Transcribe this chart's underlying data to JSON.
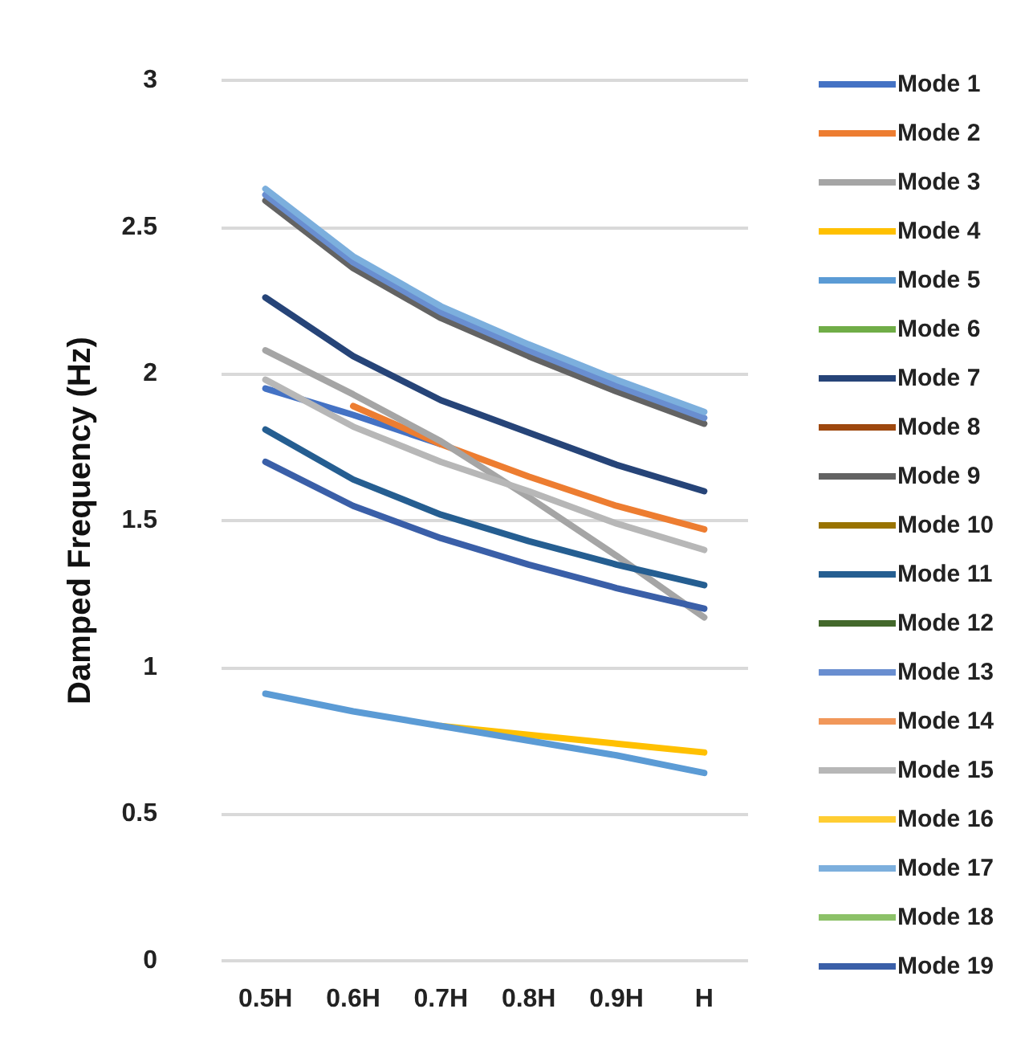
{
  "chart_data": {
    "type": "line",
    "ylabel": "Damped Frequency (Hz)",
    "categories": [
      "0.5H",
      "0.6H",
      "0.7H",
      "0.8H",
      "0.9H",
      "H"
    ],
    "ylim": [
      0,
      3
    ],
    "yticks": [
      0,
      0.5,
      1,
      1.5,
      2,
      2.5,
      3
    ],
    "grid": "y",
    "legend": "right",
    "marker": "none",
    "line_style": "solid",
    "series": [
      {
        "name": "Mode 1",
        "color": "#4472c4",
        "values": [
          1.95,
          1.86,
          1.76,
          null,
          null,
          null
        ]
      },
      {
        "name": "Mode 2",
        "color": "#ed7d31",
        "values": [
          null,
          1.89,
          1.76,
          1.65,
          1.55,
          1.47
        ]
      },
      {
        "name": "Mode 3",
        "color": "#a5a5a5",
        "values": [
          2.08,
          1.93,
          1.77,
          1.58,
          1.38,
          1.17
        ]
      },
      {
        "name": "Mode 4",
        "color": "#ffc000",
        "values": [
          null,
          null,
          0.8,
          0.77,
          0.74,
          0.71
        ]
      },
      {
        "name": "Mode 5",
        "color": "#5b9bd5",
        "values": [
          0.91,
          0.85,
          0.8,
          0.75,
          0.7,
          0.64
        ]
      },
      {
        "name": "Mode 6",
        "color": "#70ad47",
        "values": [
          null,
          null,
          null,
          null,
          null,
          null
        ]
      },
      {
        "name": "Mode 7",
        "color": "#264478",
        "values": [
          2.26,
          2.06,
          1.91,
          1.8,
          1.69,
          1.6
        ]
      },
      {
        "name": "Mode 8",
        "color": "#9e480e",
        "values": [
          null,
          null,
          null,
          null,
          null,
          null
        ]
      },
      {
        "name": "Mode 9",
        "color": "#636363",
        "values": [
          2.59,
          2.36,
          2.19,
          2.06,
          1.94,
          1.83
        ]
      },
      {
        "name": "Mode 10",
        "color": "#997300",
        "values": [
          null,
          null,
          null,
          null,
          null,
          null
        ]
      },
      {
        "name": "Mode 11",
        "color": "#255e91",
        "values": [
          1.81,
          1.64,
          1.52,
          1.43,
          1.35,
          1.28
        ]
      },
      {
        "name": "Mode 12",
        "color": "#43682b",
        "values": [
          null,
          null,
          null,
          null,
          null,
          null
        ]
      },
      {
        "name": "Mode 13",
        "color": "#698ed0",
        "values": [
          2.61,
          2.38,
          2.21,
          2.08,
          1.96,
          1.85
        ]
      },
      {
        "name": "Mode 14",
        "color": "#f1975a",
        "values": [
          null,
          null,
          null,
          null,
          null,
          null
        ]
      },
      {
        "name": "Mode 15",
        "color": "#b7b7b7",
        "values": [
          1.98,
          1.82,
          1.7,
          1.6,
          1.49,
          1.4
        ]
      },
      {
        "name": "Mode 16",
        "color": "#ffcd33",
        "values": [
          null,
          null,
          null,
          null,
          null,
          null
        ]
      },
      {
        "name": "Mode 17",
        "color": "#7cafdd",
        "values": [
          2.63,
          2.4,
          2.23,
          2.1,
          1.98,
          1.87
        ]
      },
      {
        "name": "Mode 18",
        "color": "#8cc168",
        "values": [
          null,
          null,
          null,
          null,
          null,
          null
        ]
      },
      {
        "name": "Mode 19",
        "color": "#3a5fa8",
        "values": [
          1.7,
          1.55,
          1.44,
          1.35,
          1.27,
          1.2
        ]
      }
    ]
  }
}
